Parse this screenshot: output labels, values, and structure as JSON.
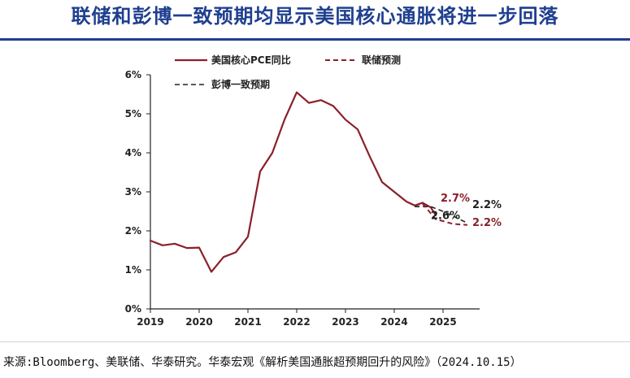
{
  "page": {
    "title": "联储和彭博一致预期均显示美国核心通胀将进一步回落",
    "source": "来源:Bloomberg、美联储、华泰研究。华泰宏观《解析美国通胀超预期回升的风险》（2024.10.15）"
  },
  "colors": {
    "title": "#1f3f8f",
    "pce": "#8b1f2b",
    "fed": "#8b1f2b",
    "bbg": "#222222",
    "axis": "#222222"
  },
  "chart_data": {
    "type": "line",
    "y_ticks": [
      "0%",
      "1%",
      "2%",
      "3%",
      "4%",
      "5%",
      "6%"
    ],
    "x_ticks": [
      "2019",
      "2020",
      "2021",
      "2022",
      "2023",
      "2024",
      "2025"
    ],
    "ylim": [
      0,
      6
    ],
    "xlim": [
      2019,
      2025.75
    ],
    "legend": {
      "placement": "top",
      "items": [
        {
          "key": "pce",
          "label": "美国核心PCE同比",
          "style": "solid"
        },
        {
          "key": "fed",
          "label": "联储预测",
          "style": "dashed"
        },
        {
          "key": "bbg",
          "label": "彭博一致预期",
          "style": "dashed"
        }
      ]
    },
    "series": [
      {
        "key": "pce",
        "name": "美国核心PCE同比",
        "style": "solid",
        "points": [
          [
            2019.0,
            1.75
          ],
          [
            2019.25,
            1.63
          ],
          [
            2019.5,
            1.67
          ],
          [
            2019.75,
            1.56
          ],
          [
            2020.0,
            1.57
          ],
          [
            2020.25,
            0.95
          ],
          [
            2020.5,
            1.33
          ],
          [
            2020.75,
            1.45
          ],
          [
            2021.0,
            1.85
          ],
          [
            2021.25,
            3.52
          ],
          [
            2021.5,
            4.0
          ],
          [
            2021.75,
            4.85
          ],
          [
            2022.0,
            5.55
          ],
          [
            2022.25,
            5.28
          ],
          [
            2022.5,
            5.35
          ],
          [
            2022.75,
            5.2
          ],
          [
            2023.0,
            4.85
          ],
          [
            2023.25,
            4.6
          ],
          [
            2023.5,
            3.9
          ],
          [
            2023.75,
            3.25
          ],
          [
            2024.0,
            3.0
          ],
          [
            2024.25,
            2.75
          ],
          [
            2024.42,
            2.65
          ],
          [
            2024.58,
            2.72
          ],
          [
            2024.75,
            2.6
          ],
          [
            2024.85,
            2.4
          ]
        ]
      },
      {
        "key": "fed",
        "name": "联储预测",
        "style": "dashed",
        "points": [
          [
            2024.42,
            2.65
          ],
          [
            2024.58,
            2.7
          ],
          [
            2024.85,
            2.3
          ],
          [
            2025.0,
            2.25
          ],
          [
            2025.2,
            2.18
          ],
          [
            2025.5,
            2.15
          ]
        ]
      },
      {
        "key": "bbg",
        "name": "彭博一致预期",
        "style": "dashed",
        "points": [
          [
            2024.42,
            2.62
          ],
          [
            2024.75,
            2.62
          ],
          [
            2025.0,
            2.5
          ],
          [
            2025.25,
            2.35
          ],
          [
            2025.5,
            2.2
          ]
        ]
      }
    ],
    "annotations": [
      {
        "key": "fed_high",
        "text": "2.7%",
        "x": 2024.95,
        "y": 2.75,
        "series": "fed"
      },
      {
        "key": "bbg_low",
        "text": "2.6%",
        "x": 2024.75,
        "y": 2.3,
        "series": "bbg"
      },
      {
        "key": "bbg_end",
        "text": "2.2%",
        "x": 2025.6,
        "y": 2.58,
        "series": "bbg"
      },
      {
        "key": "fed_end",
        "text": "2.2%",
        "x": 2025.6,
        "y": 2.13,
        "series": "fed"
      }
    ]
  }
}
